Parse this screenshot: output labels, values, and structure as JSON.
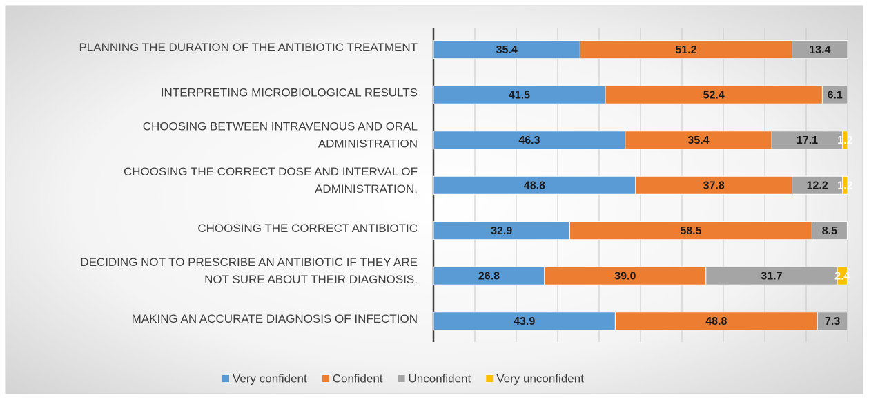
{
  "chart_data": {
    "type": "stacked_barh",
    "categories": [
      "PLANNING THE DURATION OF THE ANTIBIOTIC TREATMENT",
      "INTERPRETING MICROBIOLOGICAL RESULTS",
      "CHOOSING BETWEEN INTRAVENOUS AND ORAL\nADMINISTRATION",
      "CHOOSING THE CORRECT DOSE AND INTERVAL OF\nADMINISTRATION,",
      "CHOOSING THE CORRECT ANTIBIOTIC",
      "DECIDING NOT TO PRESCRIBE AN ANTIBIOTIC IF THEY ARE\nNOT SURE ABOUT THEIR DIAGNOSIS.",
      "MAKING AN ACCURATE DIAGNOSIS OF INFECTION"
    ],
    "series": [
      {
        "name": "Very confident",
        "color": "#5b9bd5",
        "values": [
          35.4,
          41.5,
          46.3,
          48.8,
          32.9,
          26.8,
          43.9
        ],
        "value_labels": [
          "35.4",
          "41.5",
          "46.3",
          "48.8",
          "32.9",
          "26.8",
          "43.9"
        ]
      },
      {
        "name": "Confident",
        "color": "#ed7d31",
        "values": [
          51.2,
          52.4,
          35.4,
          37.8,
          58.5,
          39.0,
          48.8
        ],
        "value_labels": [
          "51.2",
          "52.4",
          "35.4",
          "37.8",
          "58.5",
          "39.0",
          "48.8"
        ]
      },
      {
        "name": "Unconfident",
        "color": "#a5a5a5",
        "values": [
          13.4,
          6.1,
          17.1,
          12.2,
          8.5,
          31.7,
          7.3
        ],
        "value_labels": [
          "13.4",
          "6.1",
          "17.1",
          "12.2",
          "8.5",
          "31.7",
          "7.3"
        ]
      },
      {
        "name": "Very unconfident",
        "color": "#ffc000",
        "values": [
          null,
          null,
          1.2,
          1.2,
          null,
          2.4,
          null
        ],
        "value_labels": [
          null,
          null,
          "1.2",
          "1.2",
          null,
          "2.4",
          null
        ]
      }
    ],
    "xlim": [
      0,
      100
    ],
    "xticks": [
      0,
      10,
      20,
      30,
      40,
      50,
      60,
      70,
      80,
      90,
      100
    ],
    "grid": true,
    "legend": "bottom"
  }
}
